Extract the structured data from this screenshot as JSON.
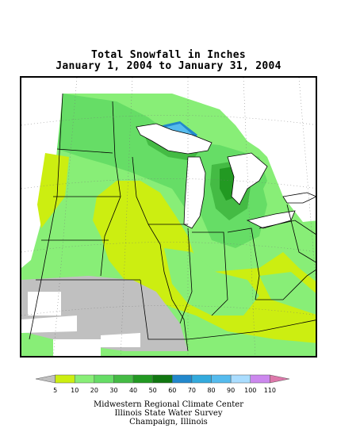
{
  "title_line1": "Total Snowfall in Inches",
  "title_line2": "January 1, 2004 to January 31, 2004",
  "legend": {
    "bins": [
      {
        "color": "#c0c0c0"
      },
      {
        "color": "#ccee11"
      },
      {
        "color": "#88ee77"
      },
      {
        "color": "#66dd66"
      },
      {
        "color": "#44bb44"
      },
      {
        "color": "#229922"
      },
      {
        "color": "#117711"
      },
      {
        "color": "#2288cc"
      },
      {
        "color": "#33aadd"
      },
      {
        "color": "#55bbee"
      },
      {
        "color": "#aaddff"
      },
      {
        "color": "#cc88ee"
      },
      {
        "color": "#dd77aa"
      }
    ],
    "labels": [
      "5",
      "10",
      "20",
      "30",
      "40",
      "50",
      "60",
      "70",
      "80",
      "90",
      "100",
      "110"
    ]
  },
  "credits": {
    "line1": "Midwestern Regional Climate Center",
    "line2": "Illinois State Water Survey",
    "line3": "Champaign, Illinois"
  }
}
